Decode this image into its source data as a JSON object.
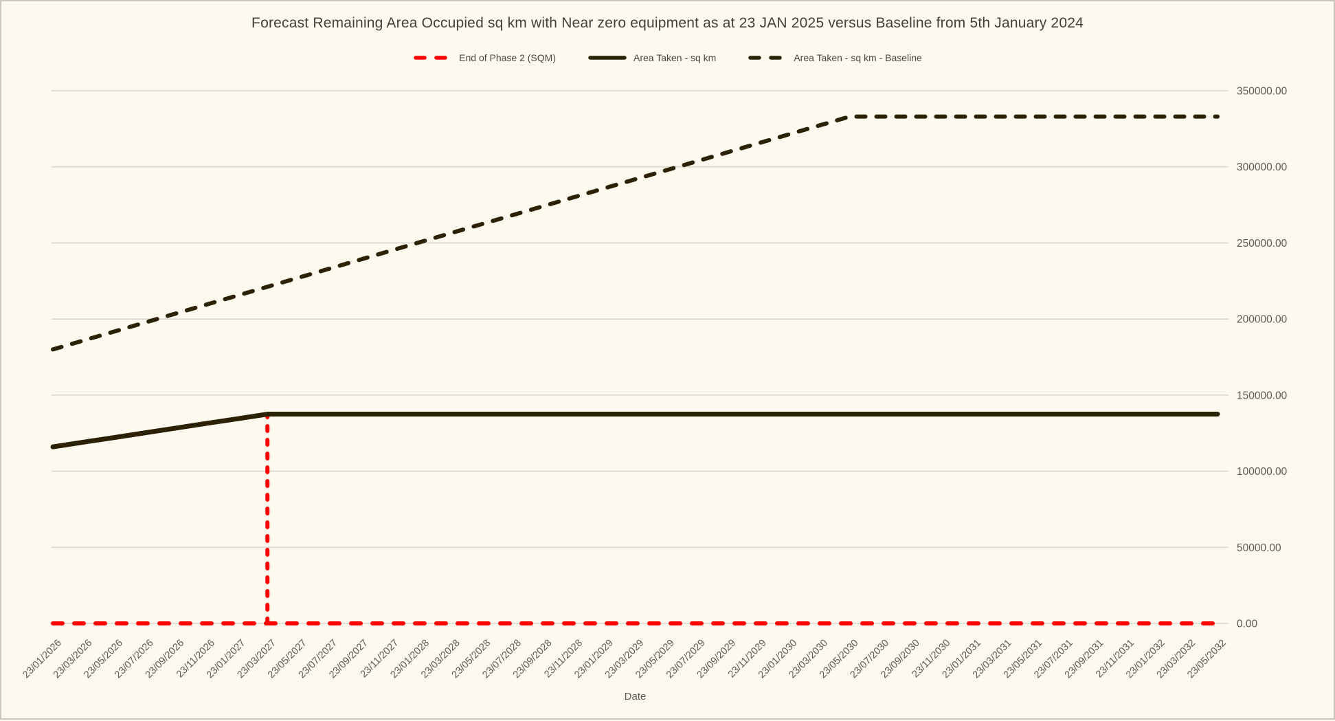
{
  "title": "Forecast Remaining Area Occupied sq km with Near zero equipment as at 23 JAN 2025 versus Baseline from 5th January 2024",
  "colors": {
    "background": "#FDF9EE",
    "border": "#C9C6BF",
    "gridline": "#D9D6D0",
    "dark_series": "#2B2103",
    "red_series": "#FF0000",
    "axis_text": "#5E5A53",
    "title_text": "#443F38"
  },
  "legend": {
    "items": [
      {
        "label": "End of Phase 2 (SQM)",
        "color": "#FF0000",
        "style": "dashed"
      },
      {
        "label": "Area Taken - sq km",
        "color": "#2B2103",
        "style": "solid"
      },
      {
        "label": "Area Taken - sq km - Baseline",
        "color": "#2B2103",
        "style": "dashed"
      }
    ]
  },
  "chart_data": {
    "type": "line",
    "title": "Forecast Remaining Area Occupied sq km with Near zero equipment as at 23 JAN 2025 versus Baseline from 5th January 2024",
    "xlabel": "Date",
    "ylabel": "",
    "ylim": [
      0,
      350000
    ],
    "grid": "horizontal",
    "legend_position": "top",
    "y_axis": {
      "values": [
        0,
        50000,
        100000,
        150000,
        200000,
        250000,
        300000,
        350000
      ],
      "labels": [
        "0.00",
        "50000.00",
        "100000.00",
        "150000.00",
        "200000.00",
        "250000.00",
        "300000.00",
        "350000.00"
      ]
    },
    "categories": [
      "23/01/2026",
      "23/03/2026",
      "23/05/2026",
      "23/07/2026",
      "23/09/2026",
      "23/11/2026",
      "23/01/2027",
      "23/03/2027",
      "23/05/2027",
      "23/07/2027",
      "23/09/2027",
      "23/11/2027",
      "23/01/2028",
      "23/03/2028",
      "23/05/2028",
      "23/07/2028",
      "23/09/2028",
      "23/11/2028",
      "23/01/2029",
      "23/03/2029",
      "23/05/2029",
      "23/07/2029",
      "23/09/2029",
      "23/11/2029",
      "23/01/2030",
      "23/03/2030",
      "23/05/2030",
      "23/07/2030",
      "23/09/2030",
      "23/11/2030",
      "23/01/2031",
      "23/03/2031",
      "23/05/2031",
      "23/07/2031",
      "23/09/2031",
      "23/11/2031",
      "23/01/2032",
      "23/03/2032",
      "23/05/2032"
    ],
    "series": [
      {
        "name": "End of Phase 2 (SQM)",
        "color": "#FF0000",
        "dash": "dashed",
        "values": [
          0,
          0,
          0,
          0,
          0,
          0,
          0,
          0,
          0,
          0,
          0,
          0,
          0,
          0,
          0,
          0,
          0,
          0,
          0,
          0,
          0,
          0,
          0,
          0,
          0,
          0,
          0,
          0,
          0,
          0,
          0,
          0,
          0,
          0,
          0,
          0,
          0,
          0,
          0
        ],
        "spike": {
          "category": "23/03/2027",
          "value": 137500
        }
      },
      {
        "name": "Area Taken - sq km",
        "color": "#2B2103",
        "dash": "solid",
        "values": [
          116000,
          119100,
          122100,
          125200,
          128300,
          131400,
          134400,
          137500,
          137500,
          137500,
          137500,
          137500,
          137500,
          137500,
          137500,
          137500,
          137500,
          137500,
          137500,
          137500,
          137500,
          137500,
          137500,
          137500,
          137500,
          137500,
          137500,
          137500,
          137500,
          137500,
          137500,
          137500,
          137500,
          137500,
          137500,
          137500,
          137500,
          137500,
          137500
        ]
      },
      {
        "name": "Area Taken - sq km - Baseline",
        "color": "#2B2103",
        "dash": "dashed",
        "values": [
          180000,
          185885,
          191769,
          197654,
          203538,
          209423,
          215308,
          221192,
          227077,
          232962,
          238846,
          244731,
          250615,
          256500,
          262385,
          268269,
          274154,
          280038,
          285923,
          291808,
          297692,
          303577,
          309462,
          315346,
          321231,
          327115,
          333000,
          333000,
          333000,
          333000,
          333000,
          333000,
          333000,
          333000,
          333000,
          333000,
          333000,
          333000,
          333000
        ]
      }
    ]
  }
}
